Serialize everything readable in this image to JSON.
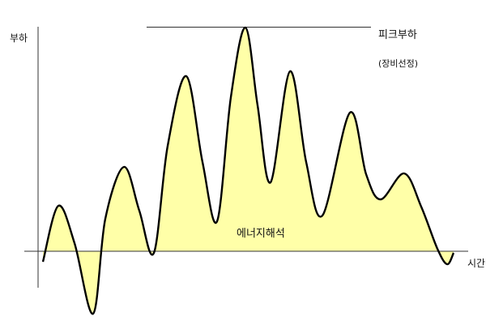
{
  "diagram": {
    "y_axis_label": "부하",
    "x_axis_label": "시간",
    "peak_label": "피크부하",
    "peak_note": "(장비선정)",
    "area_label": "에너지해석",
    "colors": {
      "fill": "#FFFFA8",
      "curve": "#000000",
      "axis": "#333333"
    }
  }
}
